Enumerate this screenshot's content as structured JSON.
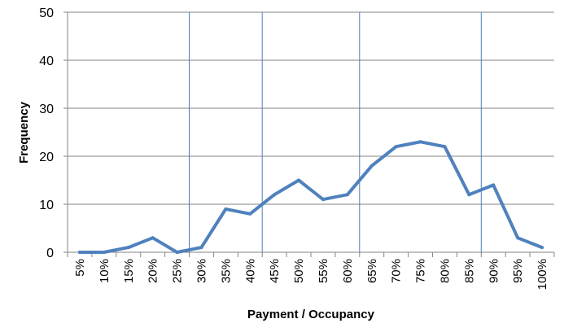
{
  "chart_data": {
    "type": "line",
    "title": "",
    "xlabel": "Payment / Occupancy",
    "ylabel": "Frequency",
    "categories": [
      "5%",
      "10%",
      "15%",
      "20%",
      "25%",
      "30%",
      "35%",
      "40%",
      "45%",
      "50%",
      "55%",
      "60%",
      "65%",
      "70%",
      "75%",
      "80%",
      "85%",
      "90%",
      "95%",
      "100%"
    ],
    "series": [
      {
        "values": [
          0,
          0,
          1,
          3,
          0,
          1,
          9,
          8,
          12,
          15,
          11,
          12,
          18,
          22,
          23,
          22,
          12,
          14,
          3,
          1
        ]
      }
    ],
    "ylim": [
      0,
      50
    ],
    "yticks": [
      0,
      10,
      20,
      30,
      40,
      50
    ],
    "reference_lines_x": [
      "25%",
      "40%",
      "60%",
      "85%"
    ],
    "grid": "horizontal",
    "legend": "none",
    "colors": {
      "line": "#4F81BD",
      "reference_lines": "#4A7EBB",
      "gridlines": "#868686",
      "axis": "#868686"
    }
  }
}
